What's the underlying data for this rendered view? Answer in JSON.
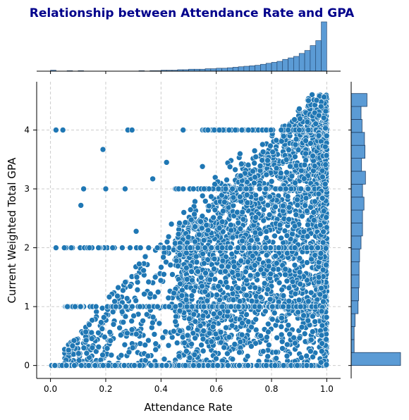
{
  "chart_data": {
    "type": "scatter",
    "title": "Relationship between Attendance Rate and GPA",
    "xlabel": "Attendance Rate",
    "ylabel": "Current Weighted Total GPA",
    "xlim": [
      -0.05,
      1.05
    ],
    "ylim": [
      -0.22,
      4.82
    ],
    "x_ticks": [
      0.0,
      0.2,
      0.4,
      0.6,
      0.8,
      1.0
    ],
    "x_tick_labels": [
      "0.0",
      "0.2",
      "0.4",
      "0.6",
      "0.8",
      "1.0"
    ],
    "y_ticks": [
      0,
      1,
      2,
      3,
      4
    ],
    "y_tick_labels": [
      "0",
      "1",
      "2",
      "3",
      "4"
    ],
    "grid": true,
    "marginal": "histograms on top (attendance rate) and right (GPA)",
    "colors": {
      "points": "#1f77b4",
      "hist": "#5b9bd5",
      "title": "#00008b"
    },
    "x_hist": {
      "bins": 50,
      "range": [
        0,
        1
      ],
      "relative_heights": [
        0.02,
        0,
        0,
        0.01,
        0,
        0.01,
        0,
        0,
        0,
        0,
        0,
        0,
        0,
        0,
        0,
        0,
        0.01,
        0,
        0.01,
        0.01,
        0.02,
        0.02,
        0.02,
        0.03,
        0.03,
        0.04,
        0.04,
        0.04,
        0.05,
        0.05,
        0.06,
        0.06,
        0.07,
        0.08,
        0.09,
        0.1,
        0.11,
        0.12,
        0.14,
        0.16,
        0.18,
        0.2,
        0.24,
        0.27,
        0.3,
        0.36,
        0.42,
        0.52,
        0.62,
        1.0
      ]
    },
    "y_hist": {
      "bins": 21,
      "range": [
        0,
        4.62
      ],
      "relative_widths": [
        1.0,
        0.06,
        0.06,
        0.08,
        0.14,
        0.15,
        0.16,
        0.16,
        0.17,
        0.2,
        0.23,
        0.23,
        0.26,
        0.23,
        0.29,
        0.21,
        0.28,
        0.27,
        0.22,
        0.2,
        0.32
      ]
    }
  }
}
